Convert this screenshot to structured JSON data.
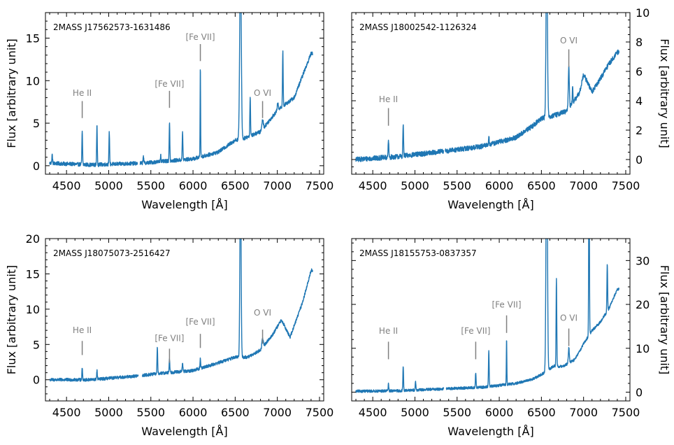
{
  "colors": {
    "line": "#1f77b4",
    "annotation": "#808080",
    "axis": "#000000"
  },
  "chart_data": [
    {
      "type": "line",
      "title": "2MASS J17562573-1631486",
      "xlabel": "Wavelength [Å]",
      "ylabel": "Flux [arbitrary unit]",
      "ylabel_side": "left",
      "xlim": [
        4250,
        7550
      ],
      "ylim": [
        -1,
        18
      ],
      "xticks": [
        4500,
        5000,
        5500,
        6000,
        6500,
        7000,
        7500
      ],
      "yticks": [
        0,
        5,
        10,
        15
      ],
      "ymajor": 5,
      "yminor": 1,
      "continuum": [
        [
          4300,
          0.3
        ],
        [
          4800,
          0.1
        ],
        [
          5400,
          0.3
        ],
        [
          6000,
          0.8
        ],
        [
          6300,
          1.6
        ],
        [
          6500,
          3.0
        ],
        [
          6600,
          3.2
        ],
        [
          6800,
          4.0
        ],
        [
          7000,
          6.5
        ],
        [
          7200,
          8.0
        ],
        [
          7400,
          13.2
        ]
      ],
      "noise": 0.22,
      "gaps": [
        [
          5340,
          5370
        ]
      ],
      "lines": [
        [
          4330,
          1.0,
          4
        ],
        [
          4686,
          3.8,
          4
        ],
        [
          4861,
          4.5,
          4
        ],
        [
          5007,
          3.8,
          4
        ],
        [
          5411,
          0.9,
          4
        ],
        [
          5617,
          0.8,
          4
        ],
        [
          5721,
          4.6,
          4
        ],
        [
          5876,
          3.3,
          4
        ],
        [
          6087,
          10.6,
          3
        ],
        [
          6563,
          22,
          9
        ],
        [
          6678,
          4.6,
          4
        ],
        [
          6825,
          1.1,
          8
        ],
        [
          7005,
          0.8,
          6
        ],
        [
          7065,
          6.5,
          4
        ]
      ],
      "annotations": [
        {
          "label": "He II",
          "x": 4686,
          "line_y": [
            5.6,
            7.6
          ],
          "text_y": 8.2
        },
        {
          "label": "[Fe VII]",
          "x": 5721,
          "line_y": [
            6.8,
            8.8
          ],
          "text_y": 9.3
        },
        {
          "label": "[Fe VII]",
          "x": 6087,
          "line_y": [
            12.3,
            14.3
          ],
          "text_y": 14.8
        },
        {
          "label": "O VI",
          "x": 6825,
          "line_y": [
            5.6,
            7.6
          ],
          "text_y": 8.2
        }
      ]
    },
    {
      "type": "line",
      "title": "2MASS J18002542-1126324",
      "xlabel": "Wavelength [Å]",
      "ylabel": "Flux [arbitrary unit]",
      "ylabel_side": "right",
      "xlim": [
        4250,
        7550
      ],
      "ylim": [
        -1,
        10
      ],
      "xticks": [
        4500,
        5000,
        5500,
        6000,
        6500,
        7000,
        7500
      ],
      "yticks": [
        0,
        2,
        4,
        6,
        8,
        10
      ],
      "ymajor": 2,
      "yminor": 0.5,
      "continuum": [
        [
          4300,
          0.0
        ],
        [
          4800,
          0.2
        ],
        [
          5400,
          0.6
        ],
        [
          5800,
          0.9
        ],
        [
          6200,
          1.5
        ],
        [
          6400,
          2.3
        ],
        [
          6500,
          2.8
        ],
        [
          6650,
          3.0
        ],
        [
          6800,
          3.3
        ],
        [
          6950,
          4.5
        ],
        [
          7000,
          5.8
        ],
        [
          7100,
          4.6
        ],
        [
          7200,
          5.5
        ],
        [
          7300,
          6.5
        ],
        [
          7400,
          7.3
        ]
      ],
      "noise": 0.17,
      "gaps": [
        [
          5340,
          5360
        ]
      ],
      "lines": [
        [
          4686,
          1.2,
          4
        ],
        [
          4861,
          2.2,
          4
        ],
        [
          5876,
          0.6,
          4
        ],
        [
          6563,
          12,
          8
        ],
        [
          6825,
          2.8,
          6
        ],
        [
          6870,
          1.0,
          4
        ]
      ],
      "annotations": [
        {
          "label": "He II",
          "x": 4686,
          "line_y": [
            2.3,
            3.5
          ],
          "text_y": 3.9
        },
        {
          "label": "O VI",
          "x": 6825,
          "line_y": [
            6.3,
            7.5
          ],
          "text_y": 7.9
        }
      ]
    },
    {
      "type": "line",
      "title": "2MASS J18075073-2516427",
      "xlabel": "Wavelength [Å]",
      "ylabel": "Flux [arbitrary unit]",
      "ylabel_side": "left",
      "xlim": [
        4250,
        7550
      ],
      "ylim": [
        -3,
        20
      ],
      "xticks": [
        4500,
        5000,
        5500,
        6000,
        6500,
        7000,
        7500
      ],
      "yticks": [
        0,
        5,
        10,
        15,
        20
      ],
      "ymajor": 5,
      "yminor": 1,
      "continuum": [
        [
          4300,
          0.0
        ],
        [
          4800,
          0.0
        ],
        [
          5300,
          0.5
        ],
        [
          5700,
          1.0
        ],
        [
          6000,
          1.3
        ],
        [
          6300,
          2.4
        ],
        [
          6500,
          3.2
        ],
        [
          6650,
          3.2
        ],
        [
          6800,
          4.2
        ],
        [
          6950,
          6.5
        ],
        [
          7050,
          8.5
        ],
        [
          7150,
          6.0
        ],
        [
          7300,
          11.0
        ],
        [
          7400,
          15.5
        ]
      ],
      "noise": 0.22,
      "gaps": [
        [
          5350,
          5400
        ]
      ],
      "lines": [
        [
          4686,
          1.6,
          4
        ],
        [
          4861,
          1.2,
          4
        ],
        [
          5577,
          3.8,
          4
        ],
        [
          5721,
          2.0,
          4
        ],
        [
          5876,
          1.3,
          4
        ],
        [
          6087,
          1.4,
          4
        ],
        [
          6563,
          27,
          7
        ],
        [
          6825,
          1.3,
          8
        ]
      ],
      "annotations": [
        {
          "label": "He II",
          "x": 4686,
          "line_y": [
            3.5,
            5.5
          ],
          "text_y": 6.6
        },
        {
          "label": "[Fe VII]",
          "x": 5721,
          "line_y": [
            2.4,
            4.4
          ],
          "text_y": 5.5
        },
        {
          "label": "[Fe VII]",
          "x": 6087,
          "line_y": [
            4.5,
            6.5
          ],
          "text_y": 7.8
        },
        {
          "label": "O VI",
          "x": 6825,
          "line_y": [
            5.1,
            7.1
          ],
          "text_y": 9.1
        }
      ]
    },
    {
      "type": "line",
      "title": "2MASS J18155753-0837357",
      "xlabel": "Wavelength [Å]",
      "ylabel": "Flux [arbitrary unit]",
      "ylabel_side": "right",
      "xlim": [
        4250,
        7550
      ],
      "ylim": [
        -2,
        35
      ],
      "xticks": [
        4500,
        5000,
        5500,
        6000,
        6500,
        7000,
        7500
      ],
      "yticks": [
        0,
        10,
        20,
        30
      ],
      "ymajor": 10,
      "yminor": 2,
      "continuum": [
        [
          4300,
          0.2
        ],
        [
          4800,
          0.3
        ],
        [
          5400,
          0.8
        ],
        [
          5800,
          1.1
        ],
        [
          6200,
          2.0
        ],
        [
          6400,
          3.0
        ],
        [
          6500,
          4.0
        ],
        [
          6650,
          6.0
        ],
        [
          6750,
          5.8
        ],
        [
          6900,
          7.5
        ],
        [
          7000,
          11.0
        ],
        [
          7100,
          14.0
        ],
        [
          7200,
          16.0
        ],
        [
          7300,
          19.0
        ],
        [
          7400,
          23.5
        ]
      ],
      "noise": 0.3,
      "gaps": [
        [
          5340,
          5370
        ]
      ],
      "lines": [
        [
          4686,
          1.7,
          4
        ],
        [
          4861,
          5.5,
          4
        ],
        [
          5007,
          2.0,
          4
        ],
        [
          5721,
          3.5,
          4
        ],
        [
          5876,
          8.2,
          4
        ],
        [
          6087,
          10.5,
          3
        ],
        [
          6563,
          60,
          8
        ],
        [
          6678,
          20.0,
          4
        ],
        [
          6825,
          3.5,
          6
        ],
        [
          7065,
          45,
          4
        ],
        [
          7281,
          11.0,
          4
        ]
      ],
      "annotations": [
        {
          "label": "He II",
          "x": 4686,
          "line_y": [
            7.5,
            11.5
          ],
          "text_y": 13.3
        },
        {
          "label": "[Fe VII]",
          "x": 5721,
          "line_y": [
            7.5,
            11.5
          ],
          "text_y": 13.3
        },
        {
          "label": "[Fe VII]",
          "x": 6087,
          "line_y": [
            13.5,
            17.5
          ],
          "text_y": 19.3
        },
        {
          "label": "O VI",
          "x": 6825,
          "line_y": [
            10.5,
            14.5
          ],
          "text_y": 16.3
        }
      ]
    }
  ]
}
